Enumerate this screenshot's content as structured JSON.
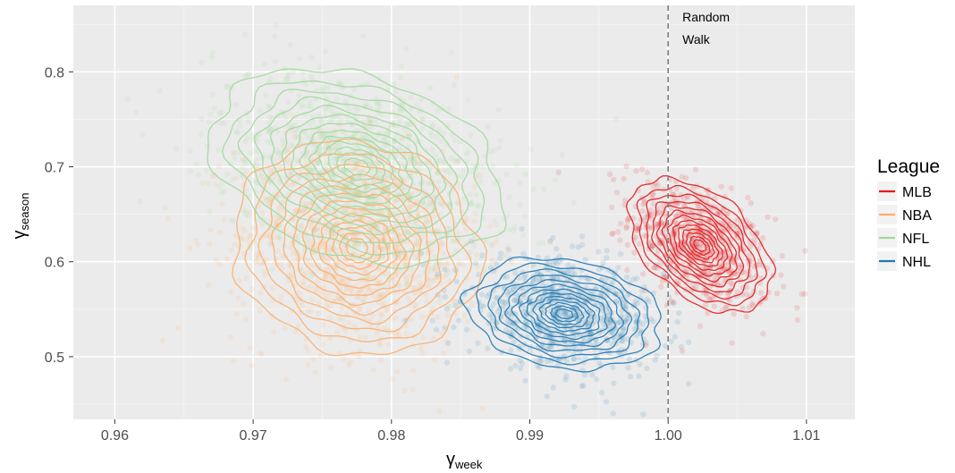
{
  "chart_data": {
    "type": "scatter",
    "title": "",
    "xlabel": {
      "main": "γ",
      "sub": "week"
    },
    "ylabel": {
      "main": "γ",
      "sub": "season"
    },
    "xlim": [
      0.957,
      1.0135
    ],
    "ylim": [
      0.434,
      0.87
    ],
    "x_ticks": [
      0.96,
      0.97,
      0.98,
      0.99,
      1.0,
      1.01
    ],
    "x_tick_labels": [
      "0.96",
      "0.97",
      "0.98",
      "0.99",
      "1.00",
      "1.01"
    ],
    "y_ticks": [
      0.5,
      0.6,
      0.7,
      0.8
    ],
    "y_tick_labels": [
      "0.5",
      "0.6",
      "0.7",
      "0.8"
    ],
    "grid": true,
    "legend_position": "right",
    "legend_title": "League",
    "reference_line": {
      "x": 1.0,
      "style": "dashed",
      "label_lines": [
        "Random",
        "Walk"
      ]
    },
    "series": [
      {
        "name": "MLB",
        "color": "#e41a1c",
        "center": [
          1.0023,
          0.617
        ],
        "sd": [
          0.0022,
          0.03
        ],
        "rho": -0.45,
        "n_points": 650
      },
      {
        "name": "NBA",
        "color": "#fdae6b",
        "center": [
          0.9775,
          0.615
        ],
        "sd": [
          0.0038,
          0.048
        ],
        "rho": -0.1,
        "n_points": 1000
      },
      {
        "name": "NFL",
        "color": "#a1d99b",
        "center": [
          0.9775,
          0.7
        ],
        "sd": [
          0.0045,
          0.044
        ],
        "rho": -0.3,
        "n_points": 1000
      },
      {
        "name": "NHL",
        "color": "#1f78b4",
        "center": [
          0.9925,
          0.545
        ],
        "sd": [
          0.003,
          0.025
        ],
        "rho": -0.2,
        "n_points": 750
      }
    ]
  }
}
